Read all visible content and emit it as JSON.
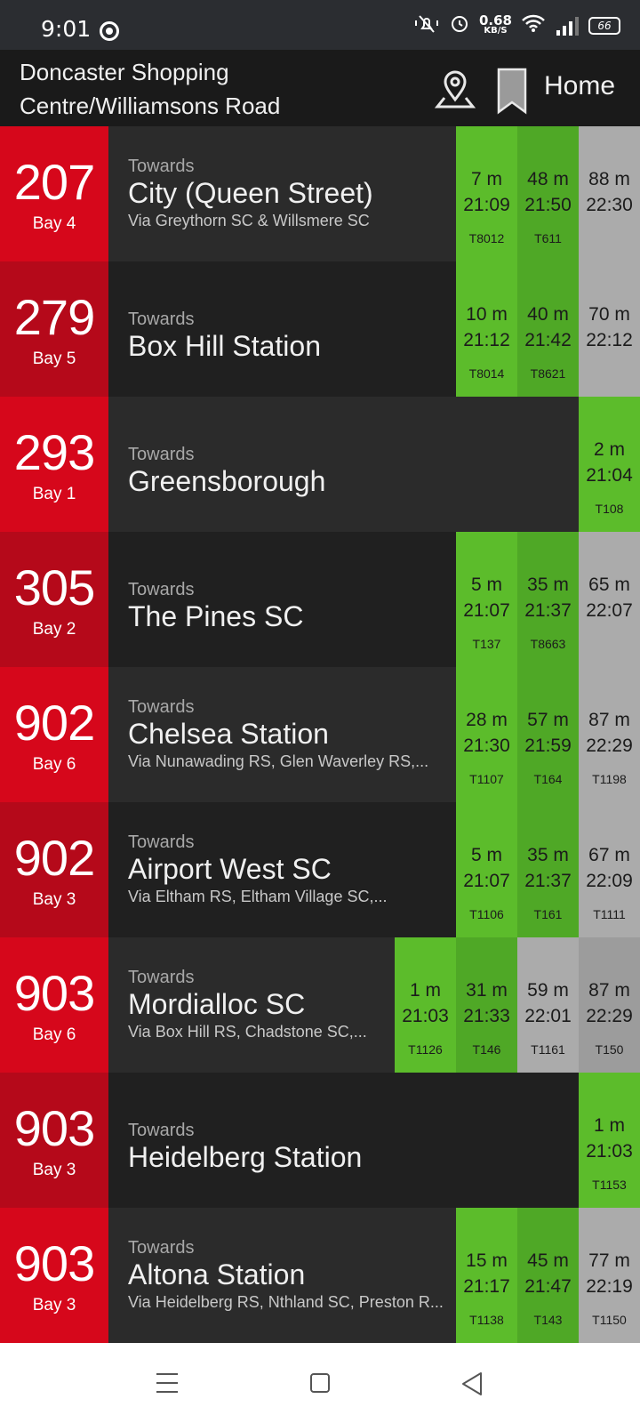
{
  "status": {
    "time": "9:01",
    "net_speed": "0.68",
    "net_unit": "KB/S",
    "battery": "66"
  },
  "header": {
    "stop_name": "Doncaster Shopping Centre/Williamsons Road",
    "home_label": "Home"
  },
  "colors": {
    "route_red": "#d6071b",
    "route_red_dark": "#b5091a",
    "dest_bg": "#2b2b2b",
    "dest_bg_dark": "#202020",
    "live_green": "#5cbc2b",
    "live_green_dark": "#4fa826",
    "scheduled_grey": "#ababab"
  },
  "departures": [
    {
      "route": "207",
      "bay": "Bay 4",
      "towards": "Towards",
      "destination": "City (Queen Street)",
      "via": "Via Greythorn SC & Willsmere SC",
      "times": [
        {
          "mins": "7 m",
          "clock": "21:09",
          "vehicle": "T8012",
          "status": "live"
        },
        {
          "mins": "48 m",
          "clock": "21:50",
          "vehicle": "T611",
          "status": "live"
        },
        {
          "mins": "88 m",
          "clock": "22:30",
          "vehicle": "",
          "status": "scheduled"
        }
      ]
    },
    {
      "route": "279",
      "bay": "Bay 5",
      "towards": "Towards",
      "destination": "Box Hill Station",
      "via": "",
      "times": [
        {
          "mins": "10 m",
          "clock": "21:12",
          "vehicle": "T8014",
          "status": "live"
        },
        {
          "mins": "40 m",
          "clock": "21:42",
          "vehicle": "T8621",
          "status": "live"
        },
        {
          "mins": "70 m",
          "clock": "22:12",
          "vehicle": "",
          "status": "scheduled"
        }
      ]
    },
    {
      "route": "293",
      "bay": "Bay 1",
      "towards": "Towards",
      "destination": "Greensborough",
      "via": "",
      "times": [
        {
          "mins": "2 m",
          "clock": "21:04",
          "vehicle": "T108",
          "status": "live"
        }
      ]
    },
    {
      "route": "305",
      "bay": "Bay 2",
      "towards": "Towards",
      "destination": "The Pines SC",
      "via": "",
      "times": [
        {
          "mins": "5 m",
          "clock": "21:07",
          "vehicle": "T137",
          "status": "live"
        },
        {
          "mins": "35 m",
          "clock": "21:37",
          "vehicle": "T8663",
          "status": "live"
        },
        {
          "mins": "65 m",
          "clock": "22:07",
          "vehicle": "",
          "status": "scheduled"
        }
      ]
    },
    {
      "route": "902",
      "bay": "Bay 6",
      "towards": "Towards",
      "destination": "Chelsea Station",
      "via": "Via Nunawading RS, Glen Waverley RS,...",
      "times": [
        {
          "mins": "28 m",
          "clock": "21:30",
          "vehicle": "T1107",
          "status": "live"
        },
        {
          "mins": "57 m",
          "clock": "21:59",
          "vehicle": "T164",
          "status": "live"
        },
        {
          "mins": "87 m",
          "clock": "22:29",
          "vehicle": "T1198",
          "status": "scheduled"
        }
      ]
    },
    {
      "route": "902",
      "bay": "Bay 3",
      "towards": "Towards",
      "destination": "Airport West SC",
      "via": "Via Eltham RS, Eltham Village SC,...",
      "times": [
        {
          "mins": "5 m",
          "clock": "21:07",
          "vehicle": "T1106",
          "status": "live"
        },
        {
          "mins": "35 m",
          "clock": "21:37",
          "vehicle": "T161",
          "status": "live"
        },
        {
          "mins": "67 m",
          "clock": "22:09",
          "vehicle": "T1111",
          "status": "scheduled"
        }
      ]
    },
    {
      "route": "903",
      "bay": "Bay 6",
      "towards": "Towards",
      "destination": "Mordialloc SC",
      "via": "Via Box Hill RS, Chadstone SC,...",
      "times": [
        {
          "mins": "1 m",
          "clock": "21:03",
          "vehicle": "T1126",
          "status": "live"
        },
        {
          "mins": "31 m",
          "clock": "21:33",
          "vehicle": "T146",
          "status": "live"
        },
        {
          "mins": "59 m",
          "clock": "22:01",
          "vehicle": "T1161",
          "status": "scheduled"
        },
        {
          "mins": "87 m",
          "clock": "22:29",
          "vehicle": "T150",
          "status": "scheduled"
        }
      ]
    },
    {
      "route": "903",
      "bay": "Bay 3",
      "towards": "Towards",
      "destination": "Heidelberg Station",
      "via": "",
      "times": [
        {
          "mins": "1 m",
          "clock": "21:03",
          "vehicle": "T1153",
          "status": "live"
        }
      ]
    },
    {
      "route": "903",
      "bay": "Bay 3",
      "towards": "Towards",
      "destination": "Altona Station",
      "via": "Via Heidelberg RS, Nthland SC, Preston R...",
      "times": [
        {
          "mins": "15 m",
          "clock": "21:17",
          "vehicle": "T1138",
          "status": "live"
        },
        {
          "mins": "45 m",
          "clock": "21:47",
          "vehicle": "T143",
          "status": "live"
        },
        {
          "mins": "77 m",
          "clock": "22:19",
          "vehicle": "T1150",
          "status": "scheduled"
        }
      ]
    }
  ]
}
